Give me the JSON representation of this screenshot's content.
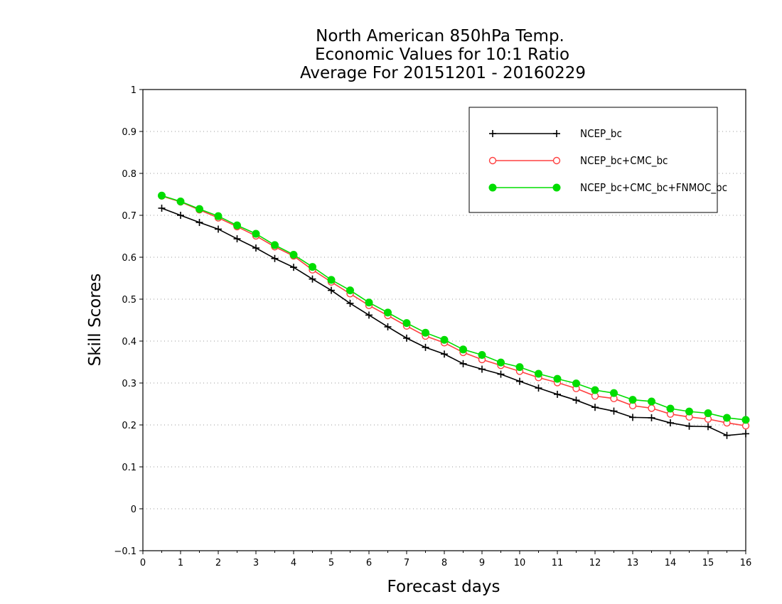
{
  "chart_data": {
    "type": "line",
    "title": [
      "North American 850hPa Temp.",
      "Economic Values for 10:1 Ratio",
      "Average For 20151201 - 20160229"
    ],
    "xlabel": "Forecast days",
    "ylabel": "Skill Scores",
    "xlim": [
      0,
      16
    ],
    "ylim": [
      -0.1,
      1
    ],
    "x_ticks": [
      "0",
      "1",
      "2",
      "3",
      "4",
      "5",
      "6",
      "7",
      "8",
      "9",
      "10",
      "11",
      "12",
      "13",
      "14",
      "15",
      "16"
    ],
    "y_ticks": [
      "-0.1",
      "0",
      "0.1",
      "0.2",
      "0.3",
      "0.4",
      "0.5",
      "0.6",
      "0.7",
      "0.8",
      "0.9",
      "1"
    ],
    "grid": "horizontal dotted",
    "legend_position": "top-right",
    "x": [
      0.5,
      1,
      1.5,
      2,
      2.5,
      3,
      3.5,
      4,
      4.5,
      5,
      5.5,
      6,
      6.5,
      7,
      7.5,
      8,
      8.5,
      9,
      9.5,
      10,
      10.5,
      11,
      11.5,
      12,
      12.5,
      13,
      13.5,
      14,
      14.5,
      15,
      15.5,
      16
    ],
    "series": [
      {
        "name": "NCEP_bc",
        "color": "#000000",
        "marker": "plus",
        "values": [
          0.717,
          0.7,
          0.683,
          0.667,
          0.644,
          0.622,
          0.597,
          0.576,
          0.548,
          0.521,
          0.49,
          0.462,
          0.434,
          0.407,
          0.385,
          0.369,
          0.346,
          0.333,
          0.321,
          0.304,
          0.288,
          0.273,
          0.259,
          0.242,
          0.233,
          0.218,
          0.217,
          0.205,
          0.197,
          0.196,
          0.175,
          0.179
        ]
      },
      {
        "name": "NCEP_bc+CMC_bc",
        "color": "#ff4040",
        "marker": "open-circle",
        "values": [
          0.746,
          0.732,
          0.713,
          0.694,
          0.673,
          0.651,
          0.625,
          0.603,
          0.57,
          0.541,
          0.513,
          0.485,
          0.461,
          0.436,
          0.412,
          0.396,
          0.373,
          0.356,
          0.342,
          0.328,
          0.313,
          0.301,
          0.287,
          0.269,
          0.263,
          0.246,
          0.24,
          0.226,
          0.219,
          0.214,
          0.205,
          0.198
        ]
      },
      {
        "name": "NCEP_bc+CMC_bc+FNMOC_bc",
        "color": "#00dd00",
        "marker": "filled-circle",
        "values": [
          0.747,
          0.733,
          0.715,
          0.698,
          0.676,
          0.656,
          0.629,
          0.606,
          0.577,
          0.546,
          0.521,
          0.492,
          0.468,
          0.443,
          0.42,
          0.403,
          0.38,
          0.367,
          0.349,
          0.338,
          0.322,
          0.31,
          0.299,
          0.283,
          0.276,
          0.26,
          0.256,
          0.239,
          0.232,
          0.228,
          0.217,
          0.212
        ]
      }
    ]
  }
}
